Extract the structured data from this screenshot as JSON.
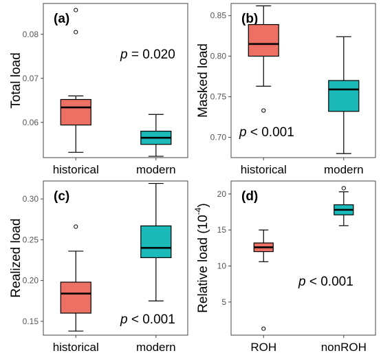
{
  "colors": {
    "historical": "#ED7065",
    "modern": "#1BB9B7",
    "stroke": "#000000",
    "frame": "#444444",
    "tick_text": "#555555",
    "label_text": "#000000"
  },
  "chart_data": [
    {
      "type": "box",
      "panel_label": "(a)",
      "ylabel": "Total load",
      "categories": [
        "historical",
        "modern"
      ],
      "ylim": [
        0.052,
        0.087
      ],
      "yticks": [
        "0.06",
        "0.07",
        "0.08"
      ],
      "boxes": [
        {
          "category": "historical",
          "min": 0.0532,
          "q1": 0.0594,
          "median": 0.0634,
          "q3": 0.0652,
          "max": 0.066,
          "outliers": [
            0.0805,
            0.0855
          ]
        },
        {
          "category": "modern",
          "min": 0.0523,
          "q1": 0.055,
          "median": 0.0565,
          "q3": 0.058,
          "max": 0.0618,
          "outliers": []
        }
      ],
      "annotation": {
        "symbol": "p",
        "text": " = 0.020",
        "placement": "upper-right"
      }
    },
    {
      "type": "box",
      "panel_label": "(b)",
      "ylabel": "Masked load",
      "categories": [
        "historical",
        "modern"
      ],
      "ylim": [
        0.675,
        0.865
      ],
      "yticks": [
        "0.70",
        "0.75",
        "0.80",
        "0.85"
      ],
      "boxes": [
        {
          "category": "historical",
          "min": 0.763,
          "q1": 0.8,
          "median": 0.815,
          "q3": 0.839,
          "max": 0.862,
          "outliers": [
            0.733
          ]
        },
        {
          "category": "modern",
          "min": 0.68,
          "q1": 0.732,
          "median": 0.759,
          "q3": 0.77,
          "max": 0.824,
          "outliers": []
        }
      ],
      "annotation": {
        "symbol": "p",
        "text": " < 0.001",
        "placement": "lower-left"
      }
    },
    {
      "type": "box",
      "panel_label": "(c)",
      "ylabel": "Realized load",
      "categories": [
        "historical",
        "modern"
      ],
      "ylim": [
        0.133,
        0.322
      ],
      "yticks": [
        "0.15",
        "0.20",
        "0.25",
        "0.30"
      ],
      "boxes": [
        {
          "category": "historical",
          "min": 0.138,
          "q1": 0.16,
          "median": 0.184,
          "q3": 0.198,
          "max": 0.236,
          "outliers": [
            0.266
          ]
        },
        {
          "category": "modern",
          "min": 0.175,
          "q1": 0.228,
          "median": 0.24,
          "q3": 0.267,
          "max": 0.319,
          "outliers": []
        }
      ],
      "annotation": {
        "symbol": "p",
        "text": " < 0.001",
        "placement": "lower-right"
      }
    },
    {
      "type": "box",
      "panel_label": "(d)",
      "ylabel": "Relative load (10",
      "ylabel_sup": "-4",
      "ylabel_end": ")",
      "categories": [
        "ROH",
        "nonROH"
      ],
      "ylim": [
        0.4,
        21.8
      ],
      "yticks": [
        "5",
        "10",
        "15",
        "20"
      ],
      "boxes": [
        {
          "category": "ROH",
          "min": 10.6,
          "q1": 12.0,
          "median": 12.6,
          "q3": 13.2,
          "max": 15.0,
          "outliers": [
            1.3
          ]
        },
        {
          "category": "nonROH",
          "min": 15.6,
          "q1": 17.1,
          "median": 17.8,
          "q3": 18.5,
          "max": 20.3,
          "outliers": [
            20.8
          ]
        }
      ],
      "annotation": {
        "symbol": "p",
        "text": " < 0.001",
        "placement": "right"
      }
    }
  ]
}
